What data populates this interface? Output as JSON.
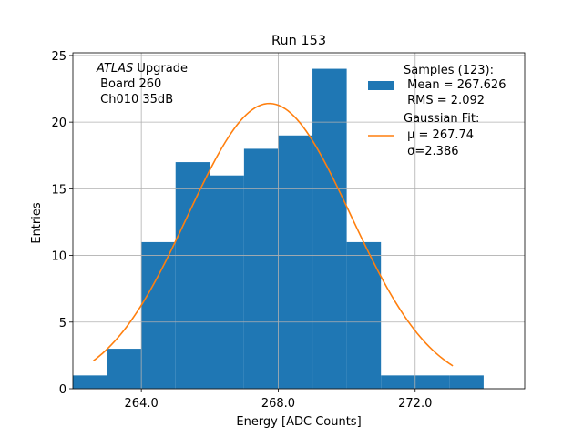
{
  "chart_data": {
    "type": "bar",
    "title": "Run 153",
    "xlabel": "Energy [ADC Counts]",
    "ylabel": "Entries",
    "xlim": [
      262.0,
      275.2
    ],
    "ylim": [
      0,
      25.2
    ],
    "xticks": [
      "264.0",
      "268.0",
      "272.0"
    ],
    "xtick_values": [
      264,
      268,
      272
    ],
    "yticks": [
      "0",
      "5",
      "10",
      "15",
      "20",
      "25"
    ],
    "ytick_values": [
      0,
      5,
      10,
      15,
      20,
      25
    ],
    "grid": true,
    "histogram": {
      "bin_edges": [
        262.0,
        263.0,
        264.0,
        265.0,
        266.0,
        267.0,
        268.0,
        269.0,
        270.0,
        271.0,
        272.0,
        273.0,
        274.0
      ],
      "counts": [
        1,
        3,
        11,
        17,
        16,
        18,
        19,
        24,
        11,
        1,
        1,
        1
      ],
      "color": "#1f77b4"
    },
    "fit_curve": {
      "mu": 267.74,
      "sigma": 2.386,
      "amplitude": 21.4,
      "x_range": [
        262.6,
        273.1
      ],
      "color": "#ff7f0e"
    },
    "annotation": {
      "line1_italic": "ATLAS",
      "line1_rest": " Upgrade",
      "line2": " Board 260",
      "line3": " Ch010 35dB"
    },
    "legend": {
      "placement": "top-right",
      "samples_lines": [
        "Samples (123):",
        " Mean = 267.626",
        " RMS = 2.092"
      ],
      "fit_lines": [
        "Gaussian Fit:",
        " μ = 267.74",
        " σ=2.386"
      ]
    }
  }
}
